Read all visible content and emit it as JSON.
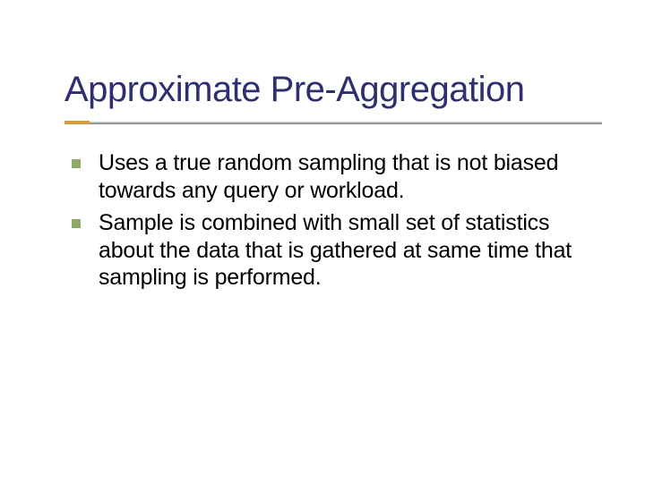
{
  "slide": {
    "title": "Approximate Pre-Aggregation",
    "bullets": [
      {
        "text": "Uses a true random sampling that is not biased towards any query or workload."
      },
      {
        "text": "Sample is combined with small set of statistics about the data that is gathered at same time that sampling is performed."
      }
    ]
  },
  "style": {
    "title_color": "#2f2f6f",
    "title_fontsize": 40,
    "body_fontsize": 25,
    "body_color": "#000000",
    "bullet_marker_color": "#8fa96b",
    "bullet_marker_shape": "square",
    "rule_color_top": "#c8c8c8",
    "rule_color_bottom": "#8a8a8a",
    "accent_color": "#d79a3a",
    "background_color": "#ffffff",
    "font_family": "Verdana"
  }
}
